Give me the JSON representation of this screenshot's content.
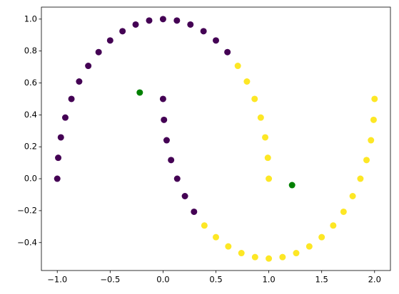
{
  "chart_data": {
    "type": "scatter",
    "series": [
      {
        "color": "#440154",
        "x": [
          0.609,
          0.5,
          0.383,
          0.259,
          0.131,
          0,
          -0.131,
          -0.259,
          -0.383,
          -0.5,
          -0.609,
          -0.707,
          -0.793,
          -0.866,
          -0.924,
          -0.966,
          -0.991,
          -1,
          0,
          0.009,
          0.034,
          0.076,
          0.134,
          0.207,
          0.293
        ],
        "values": [
          0.793,
          0.866,
          0.924,
          0.966,
          0.991,
          1,
          0.991,
          0.966,
          0.924,
          0.866,
          0.793,
          0.707,
          0.609,
          0.5,
          0.383,
          0.259,
          0.131,
          0,
          0.5,
          0.369,
          0.241,
          0.117,
          0,
          -0.109,
          -0.207
        ]
      },
      {
        "color": "#fde725",
        "x": [
          1,
          0.991,
          0.966,
          0.924,
          0.866,
          0.793,
          0.707,
          0.391,
          0.5,
          0.617,
          0.741,
          0.87,
          1,
          1.13,
          1.259,
          1.383,
          1.5,
          1.609,
          1.707,
          1.793,
          1.866,
          1.924,
          1.966,
          1.991,
          2
        ],
        "values": [
          0,
          0.131,
          0.259,
          0.383,
          0.5,
          0.609,
          0.707,
          -0.293,
          -0.366,
          -0.424,
          -0.466,
          -0.491,
          -0.5,
          -0.491,
          -0.466,
          -0.424,
          -0.366,
          -0.293,
          -0.207,
          -0.109,
          0,
          0.117,
          0.241,
          0.369,
          0.5
        ]
      },
      {
        "color": "#008000",
        "x": [
          -0.22,
          1.22
        ],
        "values": [
          0.54,
          -0.04
        ]
      }
    ],
    "xlim": [
      -1.15,
      2.15
    ],
    "ylim": [
      -0.575,
      1.075
    ],
    "xticks": [
      {
        "value": -1,
        "label": "−1.0"
      },
      {
        "value": -0.5,
        "label": "−0.5"
      },
      {
        "value": 0,
        "label": "0.0"
      },
      0.5,
      {
        "value": 1,
        "label": "1.0"
      },
      1.5,
      {
        "value": 2,
        "label": "2.0"
      }
    ],
    "yticks": [
      {
        "value": -0.4,
        "label": "−0.4"
      },
      {
        "value": -0.2,
        "label": "−0.2"
      },
      {
        "value": 0,
        "label": "0.0"
      },
      0.2,
      0.4,
      0.6,
      0.8,
      {
        "value": 1,
        "label": "1.0"
      }
    ]
  }
}
